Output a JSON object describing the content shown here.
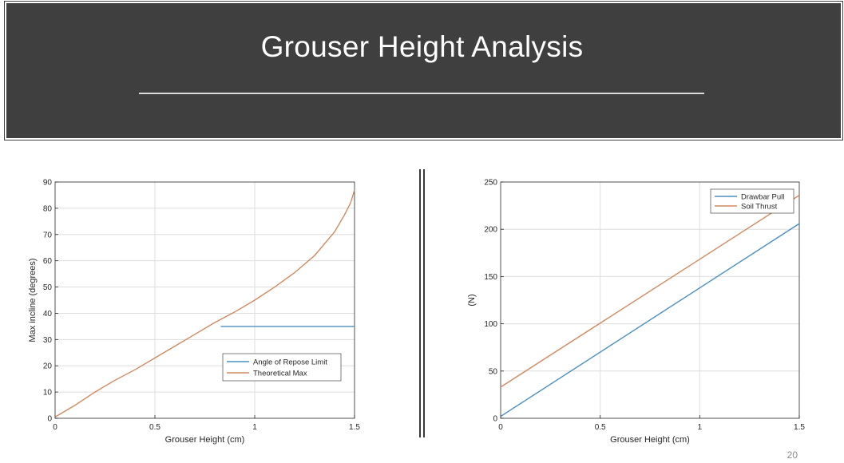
{
  "slide": {
    "title": "Grouser Height Analysis",
    "page_number": "20"
  },
  "chart_data": [
    {
      "type": "line",
      "xlabel": "Grouser Height (cm)",
      "ylabel": "Max incline (degrees)",
      "xlim": [
        0,
        1.5
      ],
      "ylim": [
        0,
        90
      ],
      "xticks": [
        0,
        0.5,
        1,
        1.5
      ],
      "xtick_labels": [
        "0",
        "0.5",
        "1",
        "1.5"
      ],
      "yticks": [
        0,
        10,
        20,
        30,
        40,
        50,
        60,
        70,
        80,
        90
      ],
      "ytick_labels": [
        "0",
        "10",
        "20",
        "30",
        "40",
        "50",
        "60",
        "70",
        "80",
        "90"
      ],
      "grid": true,
      "legend_position": "lower-right",
      "series": [
        {
          "name": "Angle of Repose Limit",
          "color": "#4a8fc0",
          "x": [
            0.83,
            1.5
          ],
          "y": [
            35,
            35
          ]
        },
        {
          "name": "Theoretical Max",
          "color": "#d08a60",
          "x": [
            0,
            0.1,
            0.2,
            0.3,
            0.4,
            0.5,
            0.6,
            0.7,
            0.8,
            0.9,
            1.0,
            1.1,
            1.2,
            1.3,
            1.4,
            1.45,
            1.48,
            1.5
          ],
          "y": [
            0.5,
            5,
            10,
            14.5,
            18.5,
            23,
            27.5,
            32,
            36.5,
            40.5,
            45,
            50,
            55.5,
            62,
            71,
            77.5,
            82,
            87
          ]
        }
      ]
    },
    {
      "type": "line",
      "xlabel": "Grouser Height (cm)",
      "ylabel": "(N)",
      "xlim": [
        0,
        1.5
      ],
      "ylim": [
        0,
        250
      ],
      "xticks": [
        0,
        0.5,
        1,
        1.5
      ],
      "xtick_labels": [
        "0",
        "0.5",
        "1",
        "1.5"
      ],
      "yticks": [
        0,
        50,
        100,
        150,
        200,
        250
      ],
      "ytick_labels": [
        "0",
        "50",
        "100",
        "150",
        "200",
        "250"
      ],
      "grid": true,
      "legend_position": "top-right",
      "series": [
        {
          "name": "Drawbar Pull",
          "color": "#4a8fc0",
          "x": [
            0,
            1.5
          ],
          "y": [
            2,
            206
          ]
        },
        {
          "name": "Soil Thrust",
          "color": "#d08a60",
          "x": [
            0,
            1.5
          ],
          "y": [
            33,
            236
          ]
        }
      ]
    }
  ]
}
